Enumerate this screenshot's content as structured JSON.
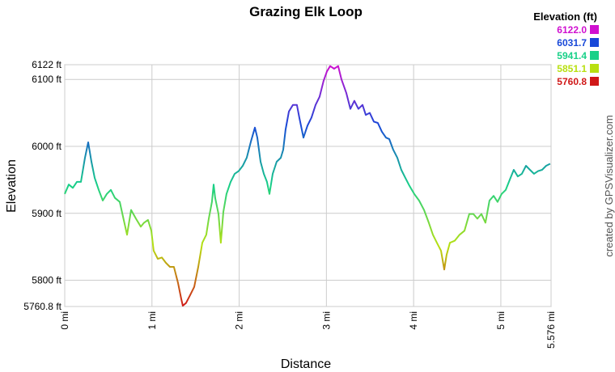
{
  "chart_data": {
    "type": "line",
    "title": "Grazing Elk Loop",
    "x_label": "Distance",
    "y_label": "Elevation",
    "credit": "created by GPSVisualizer.com",
    "x": [
      0,
      0.046,
      0.093,
      0.139,
      0.186,
      0.232,
      0.269,
      0.306,
      0.343,
      0.39,
      0.436,
      0.482,
      0.529,
      0.575,
      0.631,
      0.668,
      0.714,
      0.761,
      0.816,
      0.872,
      0.909,
      0.955,
      0.993,
      1.02,
      1.067,
      1.113,
      1.16,
      1.206,
      1.252,
      1.299,
      1.336,
      1.354,
      1.391,
      1.438,
      1.484,
      1.531,
      1.577,
      1.623,
      1.651,
      1.688,
      1.707,
      1.725,
      1.763,
      1.79,
      1.818,
      1.855,
      1.902,
      1.948,
      1.994,
      2.041,
      2.087,
      2.134,
      2.18,
      2.208,
      2.245,
      2.282,
      2.319,
      2.347,
      2.384,
      2.43,
      2.477,
      2.505,
      2.532,
      2.57,
      2.616,
      2.662,
      2.69,
      2.737,
      2.783,
      2.829,
      2.876,
      2.922,
      2.968,
      3.006,
      3.043,
      3.089,
      3.135,
      3.173,
      3.228,
      3.275,
      3.321,
      3.367,
      3.414,
      3.451,
      3.497,
      3.544,
      3.59,
      3.636,
      3.683,
      3.72,
      3.766,
      3.813,
      3.859,
      3.905,
      3.952,
      4.007,
      4.063,
      4.119,
      4.174,
      4.221,
      4.267,
      4.314,
      4.351,
      4.378,
      4.416,
      4.471,
      4.527,
      4.583,
      4.638,
      4.685,
      4.731,
      4.777,
      4.824,
      4.87,
      4.917,
      4.963,
      5.009,
      5.056,
      5.102,
      5.148,
      5.195,
      5.241,
      5.288,
      5.334,
      5.38,
      5.427,
      5.473,
      5.519,
      5.566
    ],
    "values": [
      5929,
      5943,
      5938,
      5947,
      5947,
      5983,
      6006,
      5977,
      5953,
      5935,
      5919,
      5929,
      5935,
      5923,
      5917,
      5895,
      5868,
      5905,
      5892,
      5880,
      5886,
      5890,
      5874,
      5844,
      5832,
      5834,
      5826,
      5820,
      5820,
      5796,
      5772,
      5762,
      5766,
      5778,
      5790,
      5820,
      5856,
      5868,
      5892,
      5917,
      5943,
      5923,
      5899,
      5856,
      5902,
      5929,
      5947,
      5959,
      5963,
      5971,
      5983,
      6007,
      6028,
      6013,
      5977,
      5959,
      5947,
      5929,
      5959,
      5977,
      5983,
      5995,
      6025,
      6052,
      6062,
      6062,
      6043,
      6013,
      6031,
      6043,
      6062,
      6074,
      6098,
      6112,
      6120,
      6116,
      6120,
      6100,
      6080,
      6056,
      6068,
      6056,
      6062,
      6047,
      6050,
      6037,
      6035,
      6022,
      6013,
      6011,
      5995,
      5983,
      5965,
      5953,
      5941,
      5929,
      5919,
      5905,
      5886,
      5868,
      5856,
      5844,
      5816,
      5838,
      5856,
      5859,
      5868,
      5874,
      5899,
      5899,
      5892,
      5899,
      5886,
      5919,
      5926,
      5917,
      5929,
      5935,
      5950,
      5965,
      5955,
      5959,
      5971,
      5965,
      5959,
      5963,
      5965,
      5971,
      5974
    ],
    "xlim": [
      0,
      5.576
    ],
    "xticks": [
      {
        "value": 0,
        "label": "0 mi"
      },
      {
        "value": 1,
        "label": "1 mi"
      },
      {
        "value": 2,
        "label": "2 mi"
      },
      {
        "value": 3,
        "label": "3 mi"
      },
      {
        "value": 4,
        "label": "4 mi"
      },
      {
        "value": 5,
        "label": "5 mi"
      },
      {
        "value": 5.576,
        "label": "5.576 mi"
      }
    ],
    "ylim": [
      5760.8,
      6122
    ],
    "yticks": [
      {
        "value": 5760.8,
        "label": "5760.8 ft"
      },
      {
        "value": 5800,
        "label": "5800 ft"
      },
      {
        "value": 5900,
        "label": "5900 ft"
      },
      {
        "value": 6000,
        "label": "6000 ft"
      },
      {
        "value": 6100,
        "label": "6100 ft"
      },
      {
        "value": 6122,
        "label": "6122 ft"
      }
    ],
    "grid": true,
    "legend": {
      "title": "Elevation (ft)",
      "entries": [
        {
          "value": 6122,
          "label": "6122.0",
          "color": "#d010d0"
        },
        {
          "value": 6031.7,
          "label": "6031.7",
          "color": "#1848d8"
        },
        {
          "value": 5941.4,
          "label": "5941.4",
          "color": "#18d088"
        },
        {
          "value": 5851.1,
          "label": "5851.1",
          "color": "#b8e010"
        },
        {
          "value": 5760.8,
          "label": "5760.8",
          "color": "#d01818"
        }
      ]
    }
  }
}
